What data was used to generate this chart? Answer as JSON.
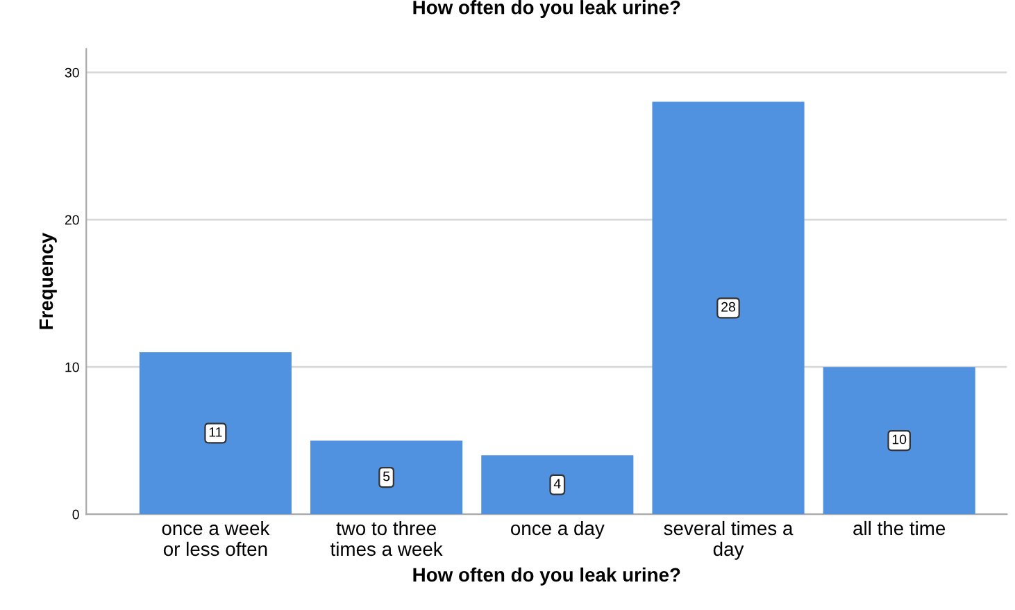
{
  "chart_data": {
    "type": "bar",
    "title": "How often do you leak urine?",
    "xlabel": "How often do you leak urine?",
    "ylabel": "Frequency",
    "categories": [
      "once a week\nor less often",
      "two to three\ntimes a week",
      "once a day",
      "several times a\nday",
      "all the time"
    ],
    "values": [
      11,
      5,
      4,
      28,
      10
    ],
    "color": "#5192e0",
    "ylim": [
      0,
      31.6
    ],
    "yticks": [
      0,
      10,
      20,
      30
    ],
    "grid": "y",
    "data_labels": true
  }
}
